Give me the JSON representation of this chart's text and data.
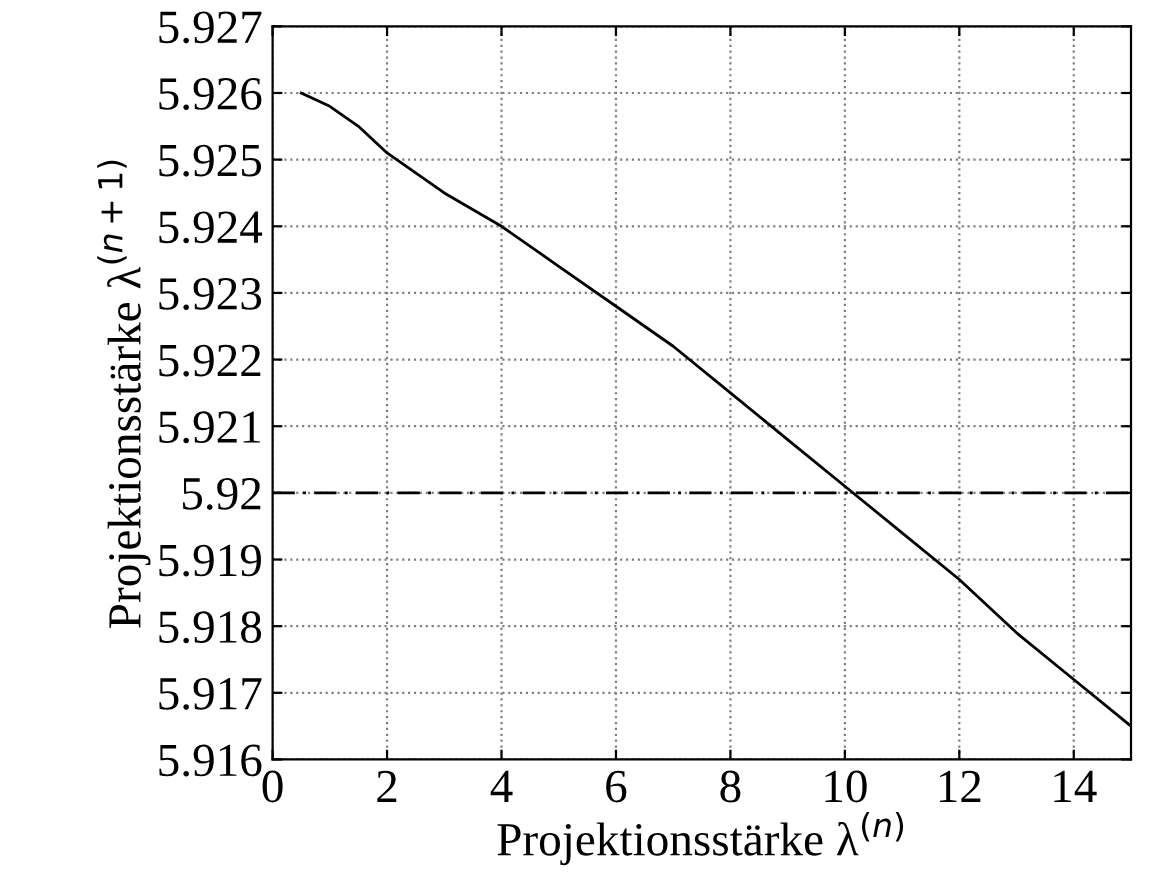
{
  "chart_data": {
    "type": "line",
    "xlabel": "Projektionsstärke λ$^{(n)}$",
    "ylabel": "Projektionsstärke λ$^{(n+1)}$",
    "x": [
      0.5,
      1,
      1.5,
      2,
      2.5,
      3,
      4,
      5,
      6,
      7,
      8,
      9,
      10,
      11,
      12,
      13,
      14,
      15
    ],
    "series": [
      {
        "color": "#000000",
        "values": [
          5.926,
          5.9258,
          5.9255,
          5.9251,
          5.9248,
          5.9245,
          5.924,
          5.9234,
          5.9228,
          5.9222,
          5.9215,
          5.9208,
          5.9201,
          5.9194,
          5.9187,
          5.9179,
          5.9172,
          5.9165
        ]
      }
    ],
    "xlim": [
      0,
      15
    ],
    "ylim": [
      5.916,
      5.927
    ],
    "xticks": [
      0,
      2,
      4,
      6,
      8,
      10,
      12,
      14
    ],
    "yticks": [
      {
        "value": 5.916,
        "label": "5.916"
      },
      {
        "value": 5.917,
        "label": "5.917"
      },
      {
        "value": 5.918,
        "label": "5.918"
      },
      {
        "value": 5.919,
        "label": "5.919"
      },
      {
        "value": 5.92,
        "label": "5.92"
      },
      {
        "value": 5.921,
        "label": "5.921"
      },
      {
        "value": 5.922,
        "label": "5.922"
      },
      {
        "value": 5.923,
        "label": "5.923"
      },
      {
        "value": 5.924,
        "label": "5.924"
      },
      {
        "value": 5.925,
        "label": "5.925"
      },
      {
        "value": 5.926,
        "label": "5.926"
      },
      {
        "value": 5.927,
        "label": "5.927"
      }
    ],
    "ref_lines": [
      {
        "axis": "y",
        "value": 5.92,
        "color": "#000000",
        "line_style": "dashdot"
      }
    ],
    "grid": true,
    "marker": "none",
    "line_style": "solid"
  }
}
